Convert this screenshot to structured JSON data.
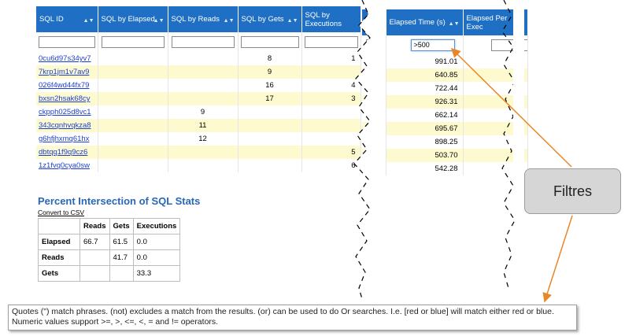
{
  "left_table": {
    "headers": [
      {
        "label": "SQL ID"
      },
      {
        "label": "SQL by Elapsed"
      },
      {
        "label": "SQL by Reads"
      },
      {
        "label": "SQL by Gets"
      },
      {
        "label": "SQL by Executions"
      }
    ],
    "rows": [
      {
        "id": "0cu6d97s34yv7",
        "elapsed": "",
        "reads": "",
        "gets": "8",
        "exec": "1"
      },
      {
        "id": "7krp1jm1v7av9",
        "elapsed": "",
        "reads": "",
        "gets": "9",
        "exec": ""
      },
      {
        "id": "026f4wd44fx79",
        "elapsed": "",
        "reads": "",
        "gets": "16",
        "exec": "4"
      },
      {
        "id": "bxsn2hsak68cy",
        "elapsed": "",
        "reads": "",
        "gets": "17",
        "exec": "3"
      },
      {
        "id": "ckpph025d8vc1",
        "elapsed": "",
        "reads": "9",
        "gets": "",
        "exec": ""
      },
      {
        "id": "343cqnhvqkza8",
        "elapsed": "",
        "reads": "11",
        "gets": "",
        "exec": ""
      },
      {
        "id": "g6hfjhxmq61hx",
        "elapsed": "",
        "reads": "12",
        "gets": "",
        "exec": ""
      },
      {
        "id": "dbtqq1f9q9cz6",
        "elapsed": "",
        "reads": "",
        "gets": "",
        "exec": "5"
      },
      {
        "id": "1z1fvq0cya0sw",
        "elapsed": "",
        "reads": "",
        "gets": "",
        "exec": "6"
      }
    ]
  },
  "right_table": {
    "headers": [
      {
        "label": "Elapsed Time (s)"
      },
      {
        "label": "Elapsed Per Exec"
      }
    ],
    "filter_value": ">500",
    "rows": [
      {
        "elapsed": "991.01"
      },
      {
        "elapsed": "640.85"
      },
      {
        "elapsed": "722.44"
      },
      {
        "elapsed": "926.31"
      },
      {
        "elapsed": "662.14"
      },
      {
        "elapsed": "695.67"
      },
      {
        "elapsed": "898.25"
      },
      {
        "elapsed": "503.70"
      },
      {
        "elapsed": "542.28"
      }
    ]
  },
  "percent": {
    "title": "Percent Intersection of SQL Stats",
    "csv_link": "Convert to CSV",
    "columns": [
      "",
      "Reads",
      "Gets",
      "Executions"
    ],
    "rows": [
      {
        "label": "Elapsed",
        "reads": "66.7",
        "gets": "61.5",
        "exec": "0.0"
      },
      {
        "label": "Reads",
        "reads": "",
        "gets": "41.7",
        "exec": "0.0"
      },
      {
        "label": "Gets",
        "reads": "",
        "gets": "",
        "exec": "33.3"
      }
    ]
  },
  "callout": {
    "label": "Filtres"
  },
  "tooltip": {
    "line1": "Quotes (\") match phrases. (not) excludes a match from the results. (or) can be used to do Or searches. I.e. [red or blue] will match either red or blue.",
    "line2": "Numeric values support >=, >, <=, <, = and != operators."
  },
  "colors": {
    "header_blue": "#1f6fc4",
    "row_yellow": "#fdfad0",
    "arrow_orange": "#e8862a"
  },
  "icons": {
    "sort": "sort-icon"
  }
}
